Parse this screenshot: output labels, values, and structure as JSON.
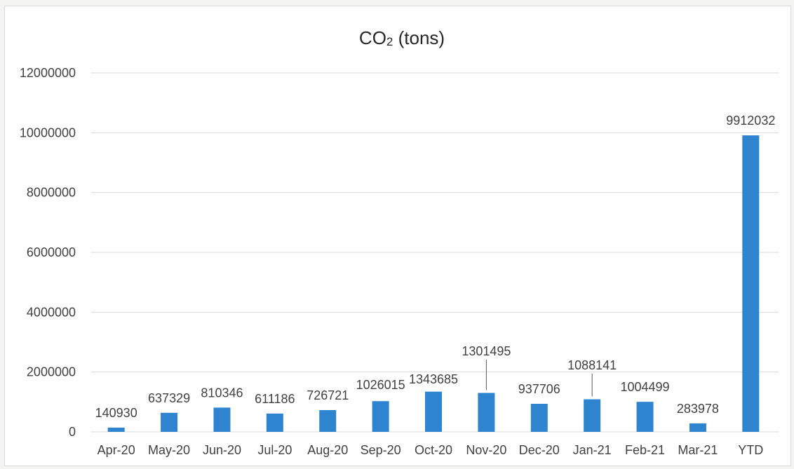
{
  "chart_data": {
    "type": "bar",
    "title_main": "CO",
    "title_sub": "2",
    "title_rest": " (tons)",
    "xlabel": "",
    "ylabel": "",
    "categories": [
      "Apr-20",
      "May-20",
      "Jun-20",
      "Jul-20",
      "Aug-20",
      "Sep-20",
      "Oct-20",
      "Nov-20",
      "Dec-20",
      "Jan-21",
      "Feb-21",
      "Mar-21",
      "YTD"
    ],
    "values": [
      140930,
      637329,
      810346,
      611186,
      726721,
      1026015,
      1343685,
      1301495,
      937706,
      1088141,
      1004499,
      283978,
      9912032
    ],
    "ylim": [
      0,
      12000000
    ],
    "yticks": [
      "0",
      "2000000",
      "4000000",
      "6000000",
      "8000000",
      "10000000",
      "12000000"
    ],
    "grid": true,
    "legend": "none",
    "bar_color": "#2f84cf"
  }
}
